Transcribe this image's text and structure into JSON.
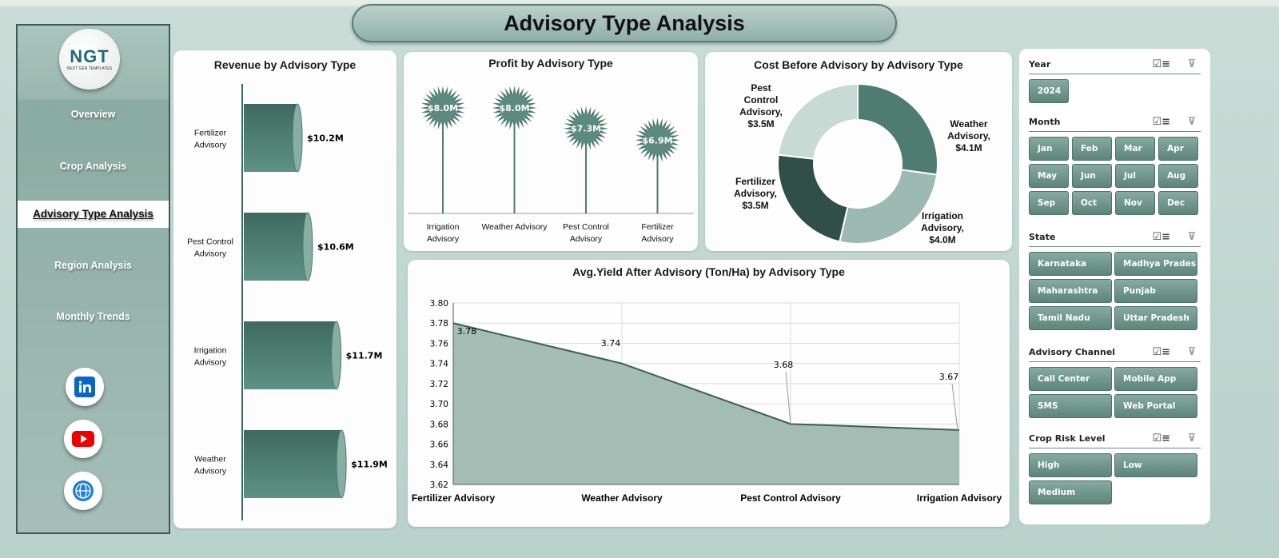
{
  "title": "Advisory Type Analysis",
  "logo": {
    "text": "NGT",
    "subtitle": "NEXT GEN TEMPLATES"
  },
  "nav": [
    {
      "label": "Overview"
    },
    {
      "label": "Crop Analysis"
    },
    {
      "label": "Advisory Type Analysis",
      "active": true
    },
    {
      "label": "Region Analysis"
    },
    {
      "label": "Monthly Trends"
    }
  ],
  "social": [
    "linkedin-icon",
    "youtube-icon",
    "globe-icon"
  ],
  "colors": {
    "bar": "#4f7c70",
    "dark": "#2f4f47",
    "light": "#c7dad4",
    "area": "#a3bdb5"
  },
  "chart_data": [
    {
      "type": "bar",
      "title": "Revenue by Advisory Type",
      "categories": [
        "Fertilizer Advisory",
        "Pest Control Advisory",
        "Irrigation Advisory",
        "Weather Advisory"
      ],
      "values": [
        10.2,
        10.6,
        11.7,
        11.9
      ],
      "labels": [
        "$10.2M",
        "$10.6M",
        "$11.7M",
        "$11.9M"
      ]
    },
    {
      "type": "bar",
      "title": "Profit by Advisory Type",
      "categories": [
        "Irrigation Advisory",
        "Weather Advisory",
        "Pest Control Advisory",
        "Fertilizer Advisory"
      ],
      "values": [
        8.0,
        8.0,
        7.3,
        6.9
      ],
      "labels": [
        "$8.0M",
        "$8.0M",
        "$7.3M",
        "$6.9M"
      ]
    },
    {
      "type": "pie",
      "title": "Cost Before Advisory by Advisory Type",
      "categories": [
        "Weather Advisory",
        "Irrigation Advisory",
        "Fertilizer Advisory",
        "Pest Control Advisory"
      ],
      "values": [
        4.1,
        4.0,
        3.5,
        3.5
      ],
      "labels": [
        "Weather Advisory, $4.1M",
        "Irrigation Advisory, $4.0M",
        "Fertilizer Advisory, $3.5M",
        "Pest Control Advisory, $3.5M"
      ]
    },
    {
      "type": "area",
      "title": "Avg.Yield After Advisory (Ton/Ha) by Advisory Type",
      "categories": [
        "Fertilizer Advisory",
        "Weather Advisory",
        "Pest Control Advisory",
        "Irrigation Advisory"
      ],
      "values": [
        3.78,
        3.74,
        3.68,
        3.674
      ],
      "labels": [
        "3.78",
        "3.74",
        "3.68",
        "3.67"
      ],
      "ylim": [
        3.62,
        3.8
      ],
      "yticks": [
        "3.80",
        "3.78",
        "3.76",
        "3.74",
        "3.72",
        "3.70",
        "3.68",
        "3.66",
        "3.64",
        "3.62"
      ],
      "grid": true
    }
  ],
  "slicers": [
    {
      "title": "Year",
      "items": [
        "2024"
      ]
    },
    {
      "title": "Month",
      "items": [
        "Jan",
        "Feb",
        "Mar",
        "Apr",
        "May",
        "Jun",
        "Jul",
        "Aug",
        "Sep",
        "Oct",
        "Nov",
        "Dec"
      ]
    },
    {
      "title": "State",
      "items": [
        "Karnataka",
        "Madhya Pradesh",
        "Maharashtra",
        "Punjab",
        "Tamil Nadu",
        "Uttar Pradesh"
      ]
    },
    {
      "title": "Advisory Channel",
      "items": [
        "Call Center",
        "Mobile App",
        "SMS",
        "Web Portal"
      ]
    },
    {
      "title": "Crop Risk Level",
      "items": [
        "High",
        "Low",
        "Medium"
      ]
    }
  ]
}
